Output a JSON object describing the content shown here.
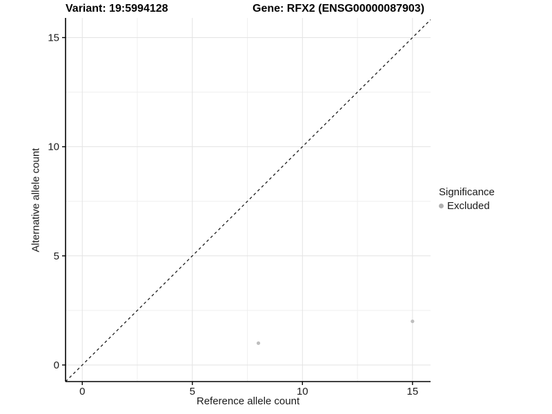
{
  "titles": {
    "variant": "Variant: 19:5994128",
    "gene": "Gene: RFX2 (ENSG00000087903)"
  },
  "x_axis": {
    "label": "Reference allele count"
  },
  "y_axis": {
    "label": "Alternative allele count"
  },
  "legend": {
    "title": "Significance",
    "items": [
      {
        "label": "Excluded",
        "marker": "circle-icon",
        "color": "#b0b0b0"
      }
    ]
  },
  "chart_data": {
    "type": "scatter",
    "title_left": "Variant: 19:5994128",
    "title_right": "Gene: RFX2 (ENSG00000087903)",
    "xlabel": "Reference allele count",
    "ylabel": "Alternative allele count",
    "xlim": [
      -0.76,
      15.82
    ],
    "ylim": [
      -0.76,
      15.9
    ],
    "x_ticks": [
      0,
      5,
      10,
      15
    ],
    "y_ticks": [
      0,
      5,
      10,
      15
    ],
    "x_minor_grid": [
      2.5,
      7.5,
      12.5
    ],
    "y_minor_grid": [
      2.5,
      7.5,
      12.5
    ],
    "grid": "on",
    "legend_position": "right",
    "series": [
      {
        "name": "Excluded",
        "color": "#bebebe",
        "points": [
          [
            8,
            1
          ],
          [
            15,
            2
          ]
        ]
      }
    ],
    "reference_line": {
      "kind": "identity",
      "equation": "y = x",
      "style": "dashed",
      "color": "#1a1a1a"
    }
  },
  "colors": {
    "background": "#ffffff",
    "axis": "#000000",
    "grid_major": "#e3e3e3",
    "grid_minor": "#efefef",
    "point": "#bebebe",
    "legend_point": "#b0b0b0",
    "text": "#1a1a1a"
  }
}
